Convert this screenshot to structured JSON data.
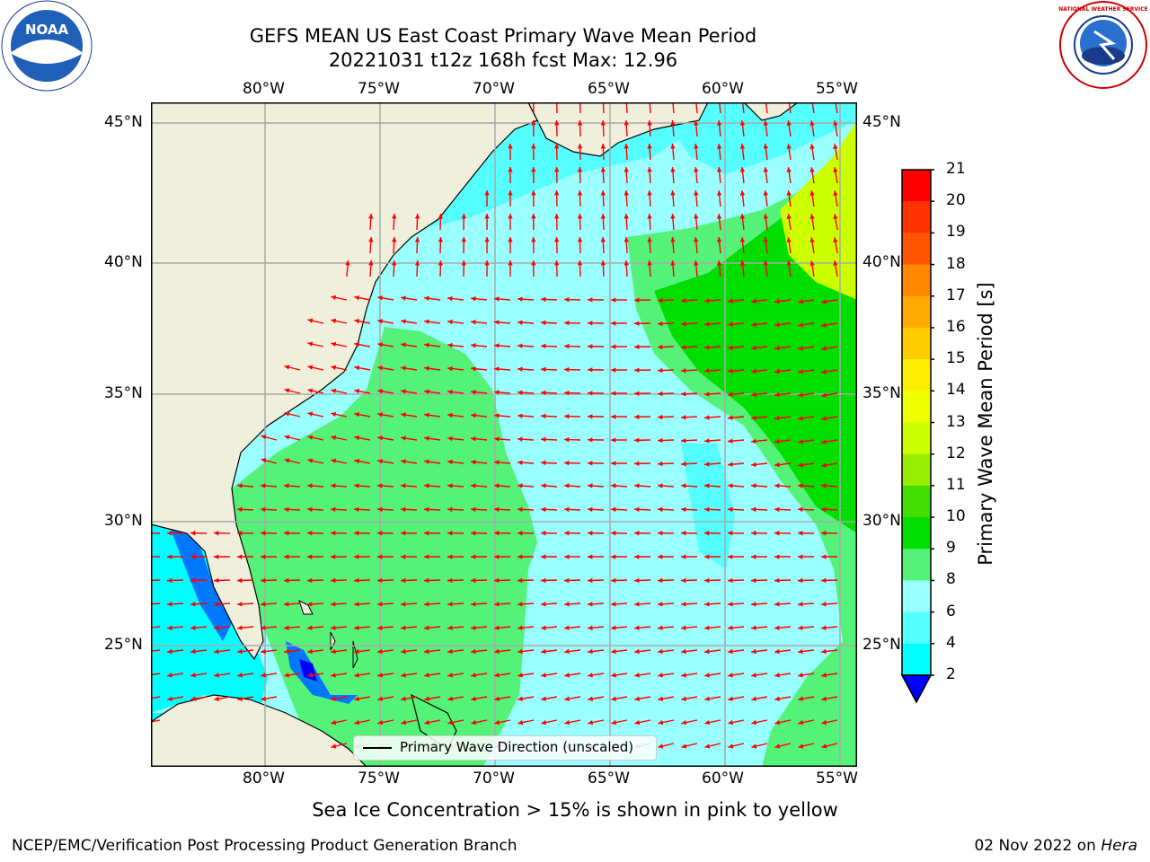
{
  "header": {
    "title_line1": "GEFS MEAN US East Coast Primary Wave Mean Period",
    "title_line2": "20221031 t12z 168h fcst   Max: 12.96"
  },
  "map": {
    "lon_labels": [
      "80°W",
      "75°W",
      "70°W",
      "65°W",
      "60°W",
      "55°W"
    ],
    "lat_labels": [
      "45°N",
      "40°N",
      "35°N",
      "30°N",
      "25°N"
    ],
    "lon_range": [
      -85,
      -54.2
    ],
    "lat_range": [
      20.5,
      46.2
    ],
    "gridlines": true,
    "land_color": "#efefdc",
    "arrow_color": "#ff0000"
  },
  "legend": {
    "label": "Primary Wave Direction (unscaled)"
  },
  "colorbar": {
    "label": "Primary Wave Mean Period [s]",
    "ticks": [
      "21",
      "20",
      "19",
      "18",
      "17",
      "16",
      "15",
      "14",
      "13",
      "12",
      "11",
      "10",
      "9",
      "8",
      "6",
      "4",
      "2"
    ],
    "colors": [
      "#ff0000",
      "#ff3300",
      "#ff5500",
      "#ff8800",
      "#ffaa00",
      "#ffcc00",
      "#ffee00",
      "#eeff00",
      "#ccff00",
      "#99ee00",
      "#44dd00",
      "#00dd00",
      "#55f27a",
      "#99ffff",
      "#55ffff",
      "#00ffff",
      "#00bbff",
      "#0077ff"
    ],
    "extend_color": "#0000ff"
  },
  "subtitle": "Sea Ice Concentration > 15% is shown in pink to yellow",
  "footer": {
    "left": "NCEP/EMC/Verification Post Processing Product Generation Branch",
    "date": "02 Nov 2022 on ",
    "host": "Hera"
  },
  "logos": {
    "noaa_text": "NOAA",
    "nws_text": "NATIONAL WEATHER SERVICE"
  }
}
